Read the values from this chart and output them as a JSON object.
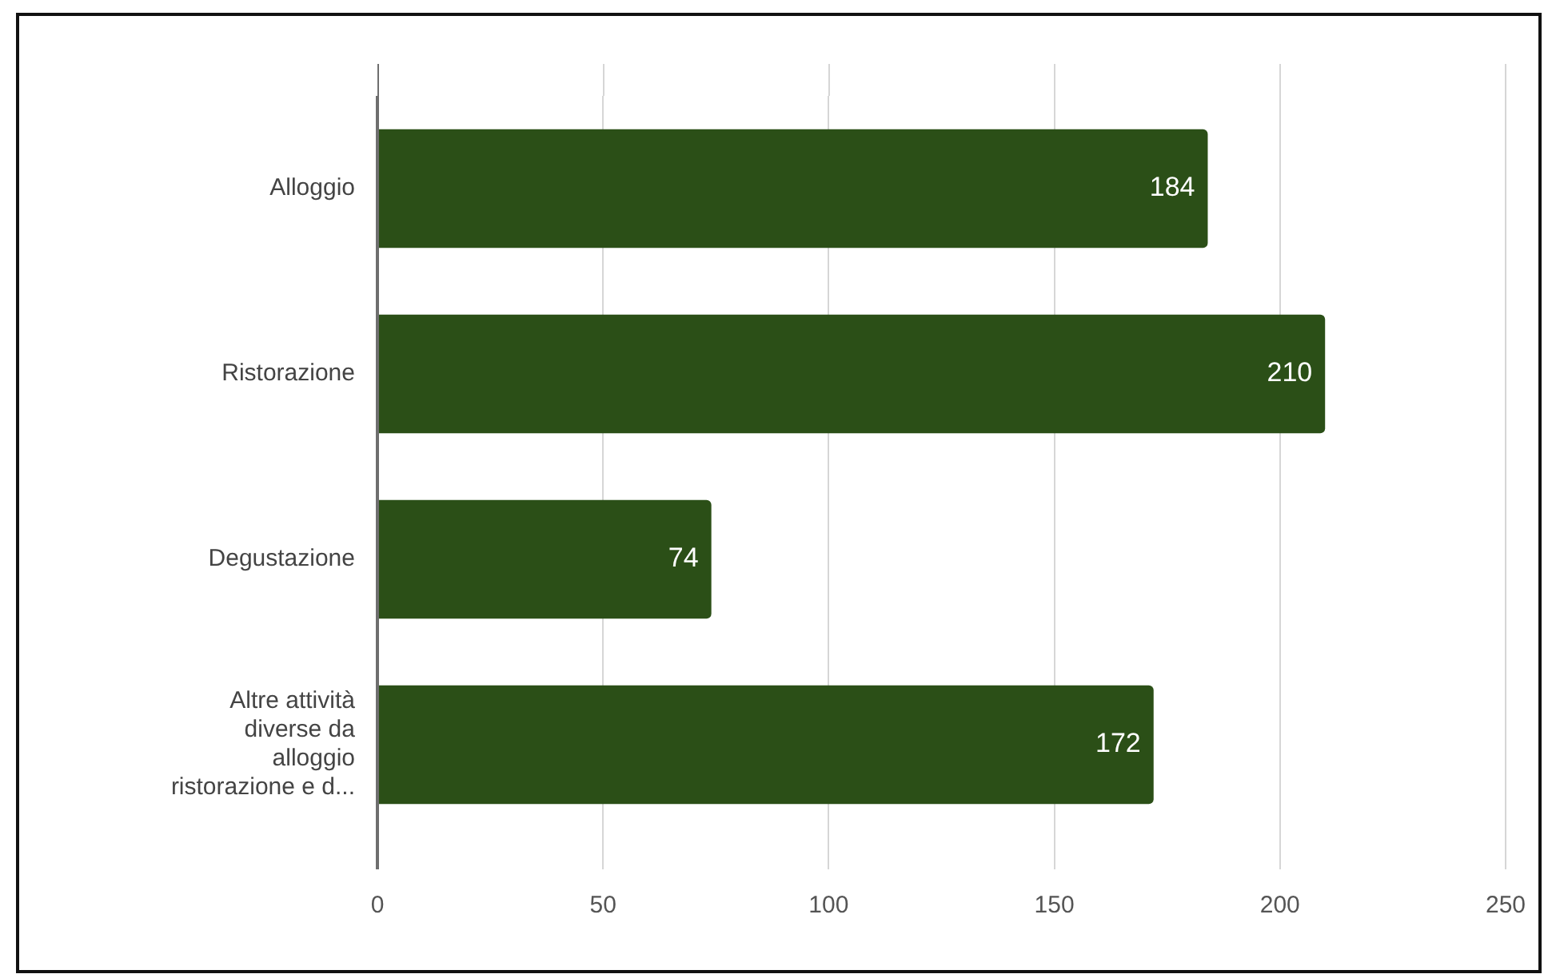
{
  "chart_data": {
    "type": "bar",
    "orientation": "horizontal",
    "categories": [
      "Alloggio",
      "Ristorazione",
      "Degustazione",
      "Altre attività diverse da alloggio ristorazione e d..."
    ],
    "values": [
      184,
      210,
      74,
      172
    ],
    "color": "#2b4f17",
    "xlim": [
      0,
      250
    ],
    "xticks": [
      0,
      50,
      100,
      150,
      200,
      250
    ],
    "grid": "x",
    "data_labels": true
  }
}
